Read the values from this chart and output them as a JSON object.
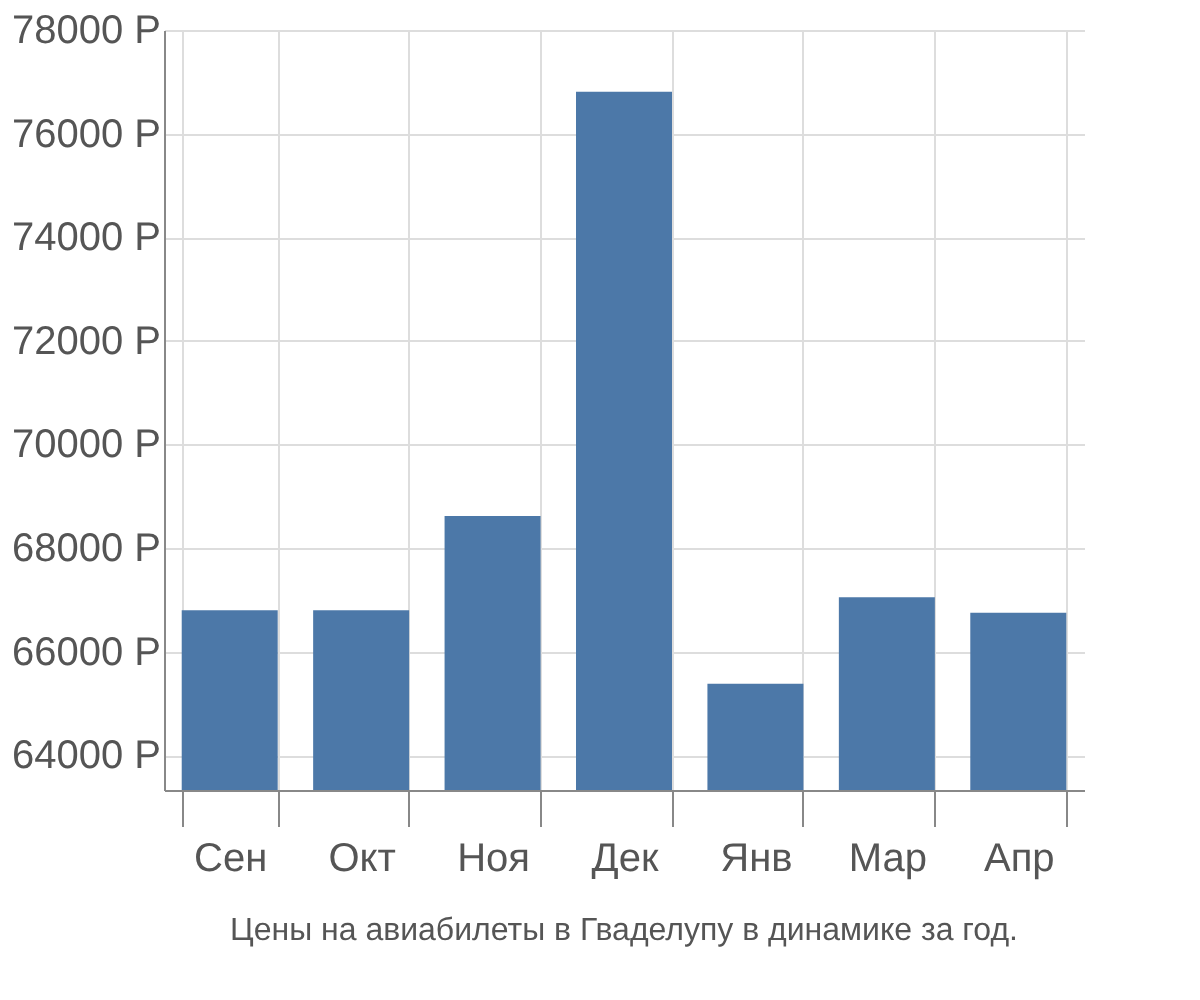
{
  "chart_data": {
    "type": "bar",
    "categories": [
      "Сен",
      "Окт",
      "Ноя",
      "Дек",
      "Янв",
      "Мар",
      "Апр"
    ],
    "values": [
      66800,
      66800,
      68620,
      76810,
      65380,
      67050,
      66750
    ],
    "color": "#4c78a8",
    "ylim": [
      63330,
      78000
    ],
    "yticks": [
      {
        "value": 64000,
        "label": "64000 Р"
      },
      {
        "value": 66000,
        "label": "66000 Р"
      },
      {
        "value": 68000,
        "label": "68000 Р"
      },
      {
        "value": 70000,
        "label": "70000 Р"
      },
      {
        "value": 72000,
        "label": "72000 Р"
      },
      {
        "value": 74000,
        "label": "74000 Р"
      },
      {
        "value": 76000,
        "label": "76000 Р"
      },
      {
        "value": 78000,
        "label": "78000 Р"
      }
    ],
    "grid": true,
    "annotations": [
      "Цены на авиабилеты в Гваделупу в динамике за год."
    ]
  }
}
